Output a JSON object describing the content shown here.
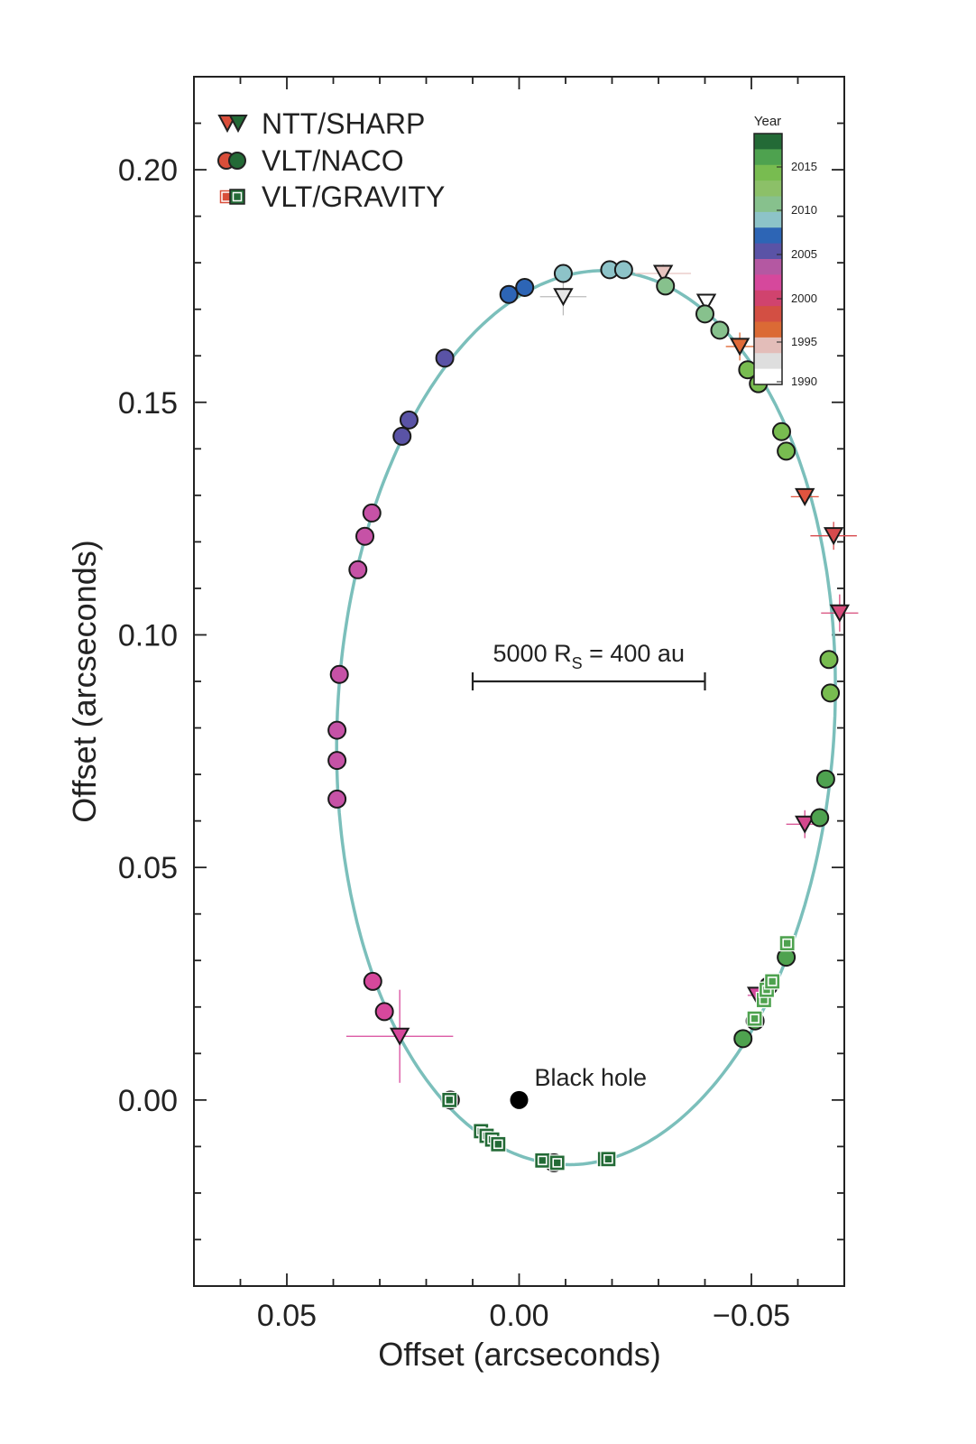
{
  "chart_data": {
    "type": "scatter",
    "title": "",
    "xlabel": "Offset (arcseconds)",
    "ylabel": "Offset (arcseconds)",
    "xlim": [
      0.07,
      -0.07
    ],
    "ylim": [
      -0.04,
      0.22
    ],
    "x_ticks": [
      0.05,
      0.0,
      -0.05
    ],
    "x_tick_labels": [
      "0.05",
      "0.00",
      "−0.05"
    ],
    "y_ticks": [
      0.0,
      0.05,
      0.1,
      0.15,
      0.2
    ],
    "y_tick_labels": [
      "0.00",
      "0.05",
      "0.10",
      "0.15",
      "0.20"
    ],
    "orbit": {
      "color": "#7bbfbb"
    },
    "legend": {
      "position": "top-left",
      "entries": [
        {
          "label": "NTT/SHARP",
          "marker": "triangle-down"
        },
        {
          "label": "VLT/NACO",
          "marker": "circle"
        },
        {
          "label": "VLT/GRAVITY",
          "marker": "square"
        }
      ]
    },
    "colorbar": {
      "title": "Year",
      "labels": [
        "2015",
        "2010",
        "2005",
        "2000",
        "1995",
        "1990"
      ],
      "colors": [
        "#236a36",
        "#4ea24f",
        "#78bc50",
        "#8cc068",
        "#87c18d",
        "#8dc3c8",
        "#2d65b5",
        "#5a53a6",
        "#b458a2",
        "#d6489c",
        "#d0436e",
        "#d34f43",
        "#db6a35",
        "#e3bdb9",
        "#dedede",
        "#ffffff"
      ]
    },
    "scale_bar": {
      "label": "5000 R",
      "subscript": "S",
      "suffix": " = 400 au",
      "x_start": 0.01,
      "x_end": -0.04,
      "y": 0.09
    },
    "black_hole": {
      "label": "Black hole",
      "x": 0.0,
      "y": 0.0
    },
    "series": [
      {
        "name": "NTT/SHARP",
        "marker": "triangle-down",
        "points": [
          {
            "x": -0.0095,
            "y": 0.1727,
            "color": "#e6e6e6",
            "xerr": 0.005,
            "yerr": 0.004
          },
          {
            "x": -0.031,
            "y": 0.1777,
            "color": "#e8c4c0",
            "xerr": 0.006,
            "yerr": 0.002
          },
          {
            "x": -0.0403,
            "y": 0.1715,
            "color": "#ffffff",
            "xerr": 0.0,
            "yerr": 0.0
          },
          {
            "x": -0.0475,
            "y": 0.162,
            "color": "#e06a38",
            "xerr": 0.003,
            "yerr": 0.003
          },
          {
            "x": -0.0615,
            "y": 0.1297,
            "color": "#e0543f",
            "xerr": 0.003,
            "yerr": 0.0
          },
          {
            "x": -0.0677,
            "y": 0.1213,
            "color": "#d74a4d",
            "xerr": 0.005,
            "yerr": 0.003
          },
          {
            "x": -0.069,
            "y": 0.1047,
            "color": "#d64a7a",
            "xerr": 0.004,
            "yerr": 0.004
          },
          {
            "x": -0.0615,
            "y": 0.0593,
            "color": "#d4488d",
            "xerr": 0.004,
            "yerr": 0.003
          },
          {
            "x": -0.0512,
            "y": 0.0225,
            "color": "#d44b9d",
            "xerr": 0.002,
            "yerr": 0.0
          },
          {
            "x": 0.0257,
            "y": 0.0137,
            "color": "#d8489c",
            "xerr": 0.0115,
            "yerr": 0.01
          }
        ]
      },
      {
        "name": "VLT/NACO",
        "marker": "circle",
        "points": [
          {
            "x": -0.0095,
            "y": 0.1777,
            "color": "#8dc3c8"
          },
          {
            "x": -0.0195,
            "y": 0.1785,
            "color": "#8dc3c8"
          },
          {
            "x": -0.0225,
            "y": 0.1785,
            "color": "#8dc3c8"
          },
          {
            "x": -0.0315,
            "y": 0.175,
            "color": "#87c18d"
          },
          {
            "x": -0.04,
            "y": 0.169,
            "color": "#87c18d"
          },
          {
            "x": -0.0432,
            "y": 0.1655,
            "color": "#87c18d"
          },
          {
            "x": -0.0492,
            "y": 0.157,
            "color": "#78bc50"
          },
          {
            "x": -0.0515,
            "y": 0.154,
            "color": "#78bc50"
          },
          {
            "x": -0.0565,
            "y": 0.1437,
            "color": "#78bc50"
          },
          {
            "x": -0.0575,
            "y": 0.1395,
            "color": "#78bc50"
          },
          {
            "x": -0.0667,
            "y": 0.0947,
            "color": "#78bc50"
          },
          {
            "x": -0.067,
            "y": 0.0875,
            "color": "#78bc50"
          },
          {
            "x": -0.066,
            "y": 0.069,
            "color": "#4ea24f"
          },
          {
            "x": -0.0647,
            "y": 0.0607,
            "color": "#4ea24f"
          },
          {
            "x": -0.0575,
            "y": 0.0307,
            "color": "#4ea24f"
          },
          {
            "x": -0.0537,
            "y": 0.0245,
            "color": "#4ea24f"
          },
          {
            "x": -0.0508,
            "y": 0.017,
            "color": "#4ea24f"
          },
          {
            "x": -0.0482,
            "y": 0.0132,
            "color": "#4ea24f"
          },
          {
            "x": -0.0075,
            "y": -0.0135,
            "color": "#236a36"
          },
          {
            "x": 0.0148,
            "y": 0.0,
            "color": "#c94a85"
          },
          {
            "x": 0.029,
            "y": 0.019,
            "color": "#d6489c"
          },
          {
            "x": 0.0315,
            "y": 0.0255,
            "color": "#d6489c"
          },
          {
            "x": 0.0392,
            "y": 0.0647,
            "color": "#c652a6"
          },
          {
            "x": 0.0392,
            "y": 0.073,
            "color": "#c652a6"
          },
          {
            "x": 0.0392,
            "y": 0.0795,
            "color": "#c652a6"
          },
          {
            "x": 0.0387,
            "y": 0.0915,
            "color": "#c652a6"
          },
          {
            "x": 0.0347,
            "y": 0.114,
            "color": "#c652a6"
          },
          {
            "x": 0.0332,
            "y": 0.1212,
            "color": "#c652a6"
          },
          {
            "x": 0.0317,
            "y": 0.1262,
            "color": "#c652a6"
          },
          {
            "x": 0.0252,
            "y": 0.1427,
            "color": "#5a53a6"
          },
          {
            "x": 0.0237,
            "y": 0.1462,
            "color": "#5a53a6"
          },
          {
            "x": 0.016,
            "y": 0.1595,
            "color": "#5a53a6"
          },
          {
            "x": 0.0022,
            "y": 0.1732,
            "color": "#2d65b5"
          },
          {
            "x": -0.0012,
            "y": 0.1747,
            "color": "#2d65b5"
          }
        ]
      },
      {
        "name": "VLT/GRAVITY",
        "marker": "square",
        "points": [
          {
            "x": 0.015,
            "y": 0.0,
            "color": "#236a36"
          },
          {
            "x": 0.0082,
            "y": -0.0067,
            "color": "#236a36"
          },
          {
            "x": 0.007,
            "y": -0.0077,
            "color": "#236a36"
          },
          {
            "x": 0.0058,
            "y": -0.0085,
            "color": "#236a36"
          },
          {
            "x": 0.0045,
            "y": -0.0095,
            "color": "#236a36"
          },
          {
            "x": -0.005,
            "y": -0.013,
            "color": "#236a36"
          },
          {
            "x": -0.0082,
            "y": -0.0135,
            "color": "#236a36"
          },
          {
            "x": -0.0185,
            "y": -0.0127,
            "color": "#236a36"
          },
          {
            "x": -0.0192,
            "y": -0.0127,
            "color": "#236a36"
          },
          {
            "x": -0.0507,
            "y": 0.0175,
            "color": "#4ea24f"
          },
          {
            "x": -0.0527,
            "y": 0.0215,
            "color": "#4ea24f"
          },
          {
            "x": -0.0533,
            "y": 0.0237,
            "color": "#4ea24f"
          },
          {
            "x": -0.0545,
            "y": 0.0255,
            "color": "#4ea24f"
          },
          {
            "x": -0.0577,
            "y": 0.0337,
            "color": "#4ea24f"
          }
        ]
      }
    ]
  }
}
